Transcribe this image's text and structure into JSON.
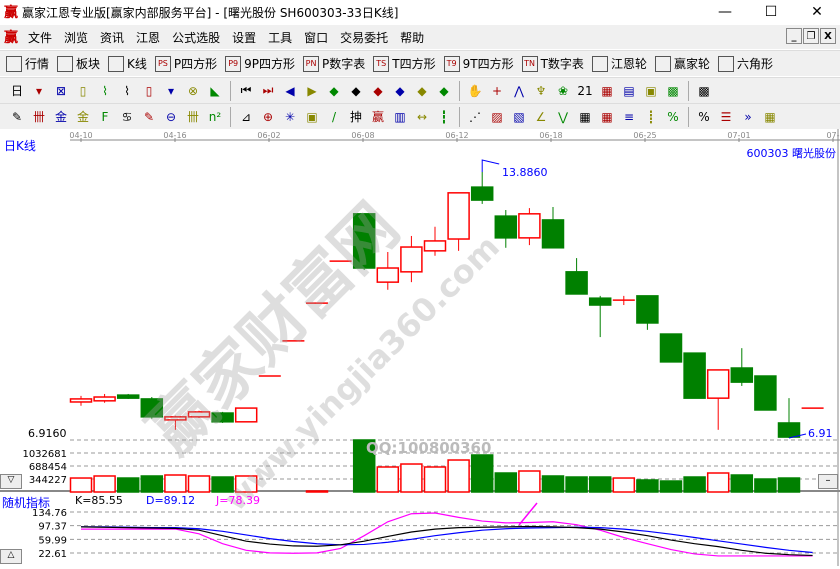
{
  "window": {
    "logo": "赢",
    "title": "赢家江恩专业版[赢家内部服务平台] - [曙光股份  SH600303-33日K线]",
    "min": "—",
    "max": "☐",
    "close": "✕"
  },
  "menu": [
    "文件",
    "浏览",
    "资讯",
    "江恩",
    "公式选股",
    "设置",
    "工具",
    "窗口",
    "交易委托",
    "帮助"
  ],
  "mdi": [
    "_",
    "❐",
    "X"
  ],
  "toolbar1": [
    {
      "icon": "grid-icon",
      "label": "行情"
    },
    {
      "icon": "blocks-icon",
      "label": "板块"
    },
    {
      "icon": "candle-icon",
      "label": "K线"
    },
    {
      "icon": "PS",
      "label": "P四方形"
    },
    {
      "icon": "P9",
      "label": "9P四方形"
    },
    {
      "icon": "PN",
      "label": "P数字表"
    },
    {
      "icon": "TS",
      "label": "T四方形"
    },
    {
      "icon": "T9",
      "label": "9T四方形"
    },
    {
      "icon": "TN",
      "label": "T数字表"
    },
    {
      "icon": "wheel-icon",
      "label": "江恩轮"
    },
    {
      "icon": "win-wheel-icon",
      "label": "赢家轮"
    },
    {
      "icon": "hexagon-icon",
      "label": "六角形"
    }
  ],
  "toolbar2": [
    "日",
    "▾",
    "⊠",
    "▯",
    "⌇",
    "⌇",
    "▯",
    "▾",
    "⊗",
    "◣",
    "⏮",
    "⏭",
    "◀",
    "▶",
    "◆",
    "◆",
    "◆",
    "◆",
    "◆",
    "◆",
    "✋",
    "+",
    "⋀",
    "♆",
    "❀",
    "21",
    "▦",
    "▤",
    "▣",
    "▩",
    "▩"
  ],
  "toolbar3": [
    "✎",
    "卌",
    "金",
    "金",
    "F",
    "♋",
    "✎",
    "⊖",
    "卌",
    "n²",
    "⊿",
    "⊕",
    "✳",
    "▣",
    "/",
    "抻",
    "赢",
    "▥",
    "↔",
    "┇",
    "⋰",
    "▨",
    "▧",
    "∠",
    "⋁",
    "▦",
    "▦",
    "≡",
    "┋",
    "%",
    "%",
    "☰",
    "»",
    "▦"
  ],
  "chart": {
    "period_label": "日K线",
    "stock": "600303  曙光股份",
    "high_label": "13.8860",
    "low_label": "6.9160",
    "low_right": "6.91",
    "watermark": "赢家财富网",
    "watermark_url": "www.yingjia360.com",
    "qq": "QQ:100800360",
    "colors": {
      "up": "#ff0000",
      "down": "#008000",
      "k": "#000000",
      "d": "#0000ff",
      "j": "#ff00ff"
    }
  },
  "chart_data": {
    "type": "candlestick",
    "date_ticks": [
      "04-10",
      "04-16",
      "06-02",
      "06-08",
      "06-12",
      "06-18",
      "06-25",
      "07-01",
      "07-"
    ],
    "ohlc": [
      [
        7.86,
        7.94,
        8.02,
        7.76
      ],
      [
        7.89,
        7.99,
        8.07,
        7.84
      ],
      [
        8.04,
        7.96,
        8.07,
        7.94
      ],
      [
        7.94,
        7.47,
        7.99,
        7.42
      ],
      [
        7.39,
        7.47,
        7.5,
        7.13
      ],
      [
        7.47,
        7.6,
        7.63,
        7.44
      ],
      [
        7.57,
        7.34,
        7.6,
        7.31
      ],
      [
        7.34,
        7.7,
        7.7,
        7.34
      ],
      [
        8.54,
        8.54,
        8.54,
        8.54
      ],
      [
        9.46,
        9.46,
        9.46,
        9.46
      ],
      [
        10.45,
        10.45,
        10.45,
        10.45
      ],
      [
        11.55,
        11.55,
        11.55,
        11.55
      ],
      [
        12.79,
        11.37,
        12.79,
        11.32
      ],
      [
        11.0,
        11.37,
        11.79,
        10.8
      ],
      [
        11.27,
        11.92,
        12.21,
        11.0
      ],
      [
        11.82,
        12.08,
        12.45,
        11.69
      ],
      [
        12.13,
        13.34,
        13.34,
        11.82
      ],
      [
        13.49,
        13.15,
        13.886,
        13.05
      ],
      [
        12.73,
        12.16,
        12.89,
        11.9
      ],
      [
        12.16,
        12.79,
        12.94,
        11.97
      ],
      [
        12.63,
        11.9,
        12.97,
        11.9
      ],
      [
        11.27,
        10.69,
        11.63,
        10.69
      ],
      [
        10.58,
        10.4,
        10.64,
        9.56
      ],
      [
        10.53,
        10.53,
        10.64,
        10.4
      ],
      [
        10.64,
        9.93,
        10.64,
        9.75
      ],
      [
        9.64,
        8.91,
        9.64,
        8.91
      ],
      [
        9.14,
        7.96,
        9.14,
        7.96
      ],
      [
        7.96,
        8.7,
        8.7,
        7.13
      ],
      [
        8.75,
        8.38,
        9.27,
        8.28
      ],
      [
        8.54,
        7.65,
        8.54,
        7.65
      ],
      [
        7.31,
        6.94,
        7.96,
        6.916
      ],
      [
        7.7,
        7.7,
        7.7,
        7.7
      ]
    ],
    "price_range": [
      6.916,
      13.886
    ],
    "volume": {
      "ticks": [
        "1032681",
        "688454",
        "344227"
      ],
      "values": [
        370000,
        424000,
        370000,
        424000,
        450000,
        424000,
        397000,
        424000,
        0,
        0,
        26000,
        0,
        1377000,
        662000,
        741000,
        662000,
        847000,
        980000,
        503000,
        556000,
        424000,
        397000,
        397000,
        370000,
        318000,
        291000,
        397000,
        503000,
        450000,
        344000,
        370000,
        0
      ],
      "max": 1032681
    },
    "kdj": {
      "title": "随机指标",
      "k_label": "K=85.55",
      "d_label": "D=89.12",
      "j_label": "J=78.39",
      "ticks": [
        "134.76",
        "97.37",
        "59.99",
        "22.61"
      ],
      "range": [
        22.61,
        134.76
      ],
      "K": [
        94,
        93,
        92,
        91,
        90,
        85,
        70,
        55,
        47,
        42,
        41,
        45,
        55,
        68,
        80,
        88,
        92,
        93,
        94,
        95,
        94,
        92,
        88,
        80,
        70,
        58,
        48,
        40,
        30,
        22,
        18,
        16
      ],
      "D": [
        94,
        94,
        93,
        92,
        92,
        89,
        82,
        72,
        62,
        54,
        48,
        45,
        46,
        52,
        60,
        70,
        78,
        85,
        89,
        91,
        92,
        93,
        92,
        88,
        82,
        74,
        65,
        56,
        47,
        38,
        30,
        24
      ],
      "J": [
        88,
        88,
        88,
        88,
        88,
        75,
        48,
        30,
        23,
        22,
        23,
        35,
        70,
        108,
        130,
        132,
        120,
        110,
        105,
        106,
        108,
        100,
        85,
        65,
        48,
        32,
        20,
        12,
        5,
        3,
        8,
        5
      ]
    }
  }
}
